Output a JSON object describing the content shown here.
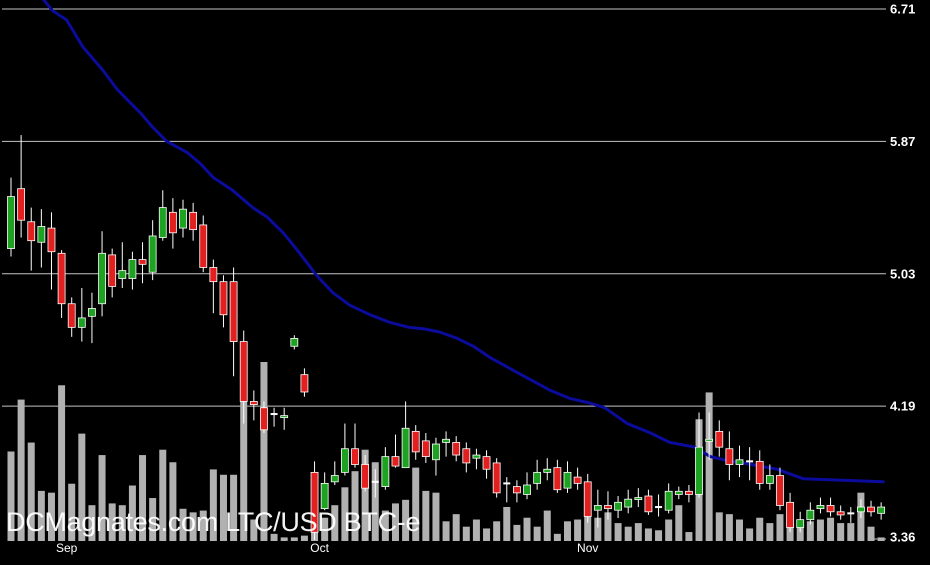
{
  "watermark": "DCMagnates.com LTC/USD BTC-e",
  "colors": {
    "background": "#000000",
    "up": "#1da321",
    "down": "#e32020",
    "wick": "#ffffff",
    "doji": "#ffffff",
    "volume": "#b1b1b1",
    "ma_line": "#0b0b9c",
    "grid": "#c4c4c4",
    "label": "#ffffff"
  },
  "chart_data": {
    "type": "candlestick",
    "title": "LTC/USD BTC-e daily price with volume and moving average",
    "legend": "off",
    "grid": "on",
    "y_axis": {
      "side": "right",
      "ylim": [
        3.3,
        6.77
      ],
      "ticks": [
        {
          "label": "6.71",
          "price": 6.71,
          "gridline": true
        },
        {
          "label": "5.87",
          "price": 5.87,
          "gridline": true
        },
        {
          "label": "5.03",
          "price": 5.03,
          "gridline": true
        },
        {
          "label": "4.19",
          "price": 4.19,
          "gridline": true
        },
        {
          "label": "3.36",
          "price": 3.36,
          "gridline": false
        }
      ]
    },
    "x_axis": {
      "labels": [
        {
          "label": "Sep",
          "index": 5.5
        },
        {
          "label": "Oct",
          "index": 30.5
        },
        {
          "label": "Nov",
          "index": 57
        }
      ]
    },
    "candles": [
      [
        "g",
        5.19,
        5.64,
        5.14,
        5.52
      ],
      [
        "r",
        5.57,
        5.91,
        5.26,
        5.37
      ],
      [
        "r",
        5.36,
        5.45,
        5.05,
        5.24
      ],
      [
        "g",
        5.23,
        5.44,
        5.07,
        5.33
      ],
      [
        "r",
        5.32,
        5.42,
        4.93,
        5.17
      ],
      [
        "r",
        5.16,
        5.18,
        4.75,
        4.84
      ],
      [
        "r",
        4.84,
        4.88,
        4.63,
        4.69
      ],
      [
        "g",
        4.69,
        4.94,
        4.6,
        4.75
      ],
      [
        "g",
        4.76,
        4.91,
        4.59,
        4.81
      ],
      [
        "g",
        4.84,
        5.3,
        4.76,
        5.16
      ],
      [
        "r",
        5.15,
        5.19,
        4.88,
        4.95
      ],
      [
        "g",
        5.0,
        5.23,
        4.94,
        5.05
      ],
      [
        "g",
        5.0,
        5.17,
        4.93,
        5.12
      ],
      [
        "r",
        5.12,
        5.23,
        4.97,
        5.09
      ],
      [
        "g",
        5.04,
        5.37,
        4.99,
        5.27
      ],
      [
        "g",
        5.26,
        5.56,
        5.24,
        5.45
      ],
      [
        "r",
        5.42,
        5.51,
        5.19,
        5.29
      ],
      [
        "g",
        5.32,
        5.5,
        5.26,
        5.44
      ],
      [
        "r",
        5.42,
        5.48,
        5.24,
        5.31
      ],
      [
        "r",
        5.34,
        5.4,
        5.04,
        5.07
      ],
      [
        "r",
        5.07,
        5.12,
        4.78,
        4.98
      ],
      [
        "r",
        4.98,
        5.02,
        4.69,
        4.77
      ],
      [
        "r",
        4.98,
        5.07,
        4.38,
        4.6
      ],
      [
        "r",
        4.6,
        4.67,
        4.08,
        4.22
      ],
      [
        "r",
        4.22,
        4.29,
        4.1,
        4.2
      ],
      [
        "r",
        4.18,
        4.22,
        4.02,
        4.04
      ],
      [
        "d",
        4.13,
        4.18,
        4.06,
        4.14
      ],
      [
        "g",
        4.12,
        4.18,
        4.04,
        4.13
      ],
      [
        "g",
        4.57,
        4.64,
        4.55,
        4.62
      ],
      [
        "r",
        4.39,
        4.43,
        4.25,
        4.28
      ],
      [
        "r",
        3.77,
        3.84,
        3.34,
        3.39
      ],
      [
        "g",
        3.54,
        3.77,
        3.53,
        3.7
      ],
      [
        "g",
        3.71,
        3.84,
        3.69,
        3.75
      ],
      [
        "g",
        3.77,
        4.08,
        3.75,
        3.92
      ],
      [
        "r",
        3.92,
        4.08,
        3.8,
        3.82
      ],
      [
        "r",
        3.82,
        3.88,
        3.65,
        3.67
      ],
      [
        "d",
        3.7,
        3.79,
        3.61,
        3.71
      ],
      [
        "g",
        3.68,
        3.93,
        3.66,
        3.87
      ],
      [
        "r",
        3.87,
        4.01,
        3.8,
        3.81
      ],
      [
        "g",
        3.8,
        4.22,
        3.8,
        4.05
      ],
      [
        "r",
        4.03,
        4.07,
        3.85,
        3.9
      ],
      [
        "r",
        3.97,
        4.02,
        3.83,
        3.87
      ],
      [
        "g",
        3.85,
        3.99,
        3.75,
        3.95
      ],
      [
        "g",
        3.96,
        4.03,
        3.87,
        3.98
      ],
      [
        "r",
        3.96,
        4.0,
        3.84,
        3.88
      ],
      [
        "r",
        3.92,
        3.96,
        3.77,
        3.83
      ],
      [
        "g",
        3.86,
        3.92,
        3.79,
        3.88
      ],
      [
        "r",
        3.87,
        3.91,
        3.73,
        3.79
      ],
      [
        "r",
        3.83,
        3.86,
        3.61,
        3.64
      ],
      [
        "d",
        3.69,
        3.74,
        3.58,
        3.7
      ],
      [
        "r",
        3.68,
        3.72,
        3.58,
        3.64
      ],
      [
        "g",
        3.63,
        3.77,
        3.6,
        3.69
      ],
      [
        "g",
        3.7,
        3.85,
        3.66,
        3.77
      ],
      [
        "g",
        3.77,
        3.86,
        3.72,
        3.79
      ],
      [
        "r",
        3.8,
        3.85,
        3.64,
        3.66
      ],
      [
        "g",
        3.67,
        3.84,
        3.64,
        3.77
      ],
      [
        "r",
        3.74,
        3.8,
        3.66,
        3.7
      ],
      [
        "r",
        3.71,
        3.76,
        3.45,
        3.49
      ],
      [
        "g",
        3.53,
        3.66,
        3.42,
        3.56
      ],
      [
        "r",
        3.56,
        3.65,
        3.47,
        3.54
      ],
      [
        "g",
        3.53,
        3.62,
        3.48,
        3.58
      ],
      [
        "g",
        3.55,
        3.66,
        3.51,
        3.6
      ],
      [
        "g",
        3.6,
        3.67,
        3.55,
        3.61
      ],
      [
        "r",
        3.62,
        3.66,
        3.5,
        3.52
      ],
      [
        "d",
        3.55,
        3.63,
        3.49,
        3.55
      ],
      [
        "g",
        3.53,
        3.7,
        3.51,
        3.65
      ],
      [
        "g",
        3.63,
        3.68,
        3.6,
        3.65
      ],
      [
        "r",
        3.65,
        3.69,
        3.58,
        3.63
      ],
      [
        "g",
        3.63,
        4.15,
        3.61,
        3.93
      ],
      [
        "g",
        3.97,
        4.15,
        3.85,
        3.98
      ],
      [
        "r",
        4.03,
        4.1,
        3.87,
        3.93
      ],
      [
        "r",
        3.92,
        4.03,
        3.72,
        3.82
      ],
      [
        "g",
        3.82,
        3.94,
        3.74,
        3.85
      ],
      [
        "d",
        3.83,
        3.93,
        3.72,
        3.84
      ],
      [
        "r",
        3.84,
        3.91,
        3.66,
        3.7
      ],
      [
        "g",
        3.7,
        3.82,
        3.66,
        3.75
      ],
      [
        "r",
        3.75,
        3.8,
        3.53,
        3.56
      ],
      [
        "r",
        3.58,
        3.64,
        3.39,
        3.42
      ],
      [
        "g",
        3.42,
        3.52,
        3.39,
        3.47
      ],
      [
        "g",
        3.47,
        3.58,
        3.44,
        3.53
      ],
      [
        "g",
        3.54,
        3.61,
        3.51,
        3.56
      ],
      [
        "r",
        3.56,
        3.61,
        3.49,
        3.52
      ],
      [
        "r",
        3.52,
        3.56,
        3.47,
        3.5
      ],
      [
        "d",
        3.51,
        3.55,
        3.45,
        3.51
      ],
      [
        "g",
        3.52,
        3.6,
        3.48,
        3.55
      ],
      [
        "r",
        3.55,
        3.59,
        3.49,
        3.52
      ],
      [
        "g",
        3.51,
        3.58,
        3.47,
        3.55
      ]
    ],
    "volume_relative": [
      50,
      79,
      55,
      28,
      27,
      87,
      32,
      60,
      20,
      48,
      21,
      20,
      31,
      48,
      24,
      51,
      44,
      18,
      16,
      17,
      40,
      37,
      37,
      86,
      12,
      100,
      4,
      2,
      2,
      3,
      8,
      13,
      20,
      30,
      39,
      51,
      44,
      17,
      21,
      23,
      41,
      28,
      27,
      11,
      15,
      8,
      12,
      7,
      11,
      19,
      9,
      13,
      8,
      17,
      4,
      11,
      12,
      19,
      13,
      16,
      10,
      8,
      10,
      7,
      6,
      12,
      20,
      5,
      68,
      83,
      16,
      15,
      12,
      7,
      13,
      10,
      15,
      14,
      9,
      11,
      12,
      13,
      10,
      10,
      27,
      8,
      2
    ],
    "moving_average": {
      "name": "moving-average-line",
      "points": [
        [
          3.2,
          6.77
        ],
        [
          4.1,
          6.7
        ],
        [
          5.5,
          6.64
        ],
        [
          7.1,
          6.47
        ],
        [
          9.1,
          6.32
        ],
        [
          10.5,
          6.2
        ],
        [
          12.8,
          6.05
        ],
        [
          14.0,
          5.96
        ],
        [
          15.4,
          5.87
        ],
        [
          17.4,
          5.8
        ],
        [
          18.7,
          5.73
        ],
        [
          20.0,
          5.64
        ],
        [
          21.9,
          5.56
        ],
        [
          23.9,
          5.45
        ],
        [
          25.3,
          5.39
        ],
        [
          26.9,
          5.29
        ],
        [
          28.3,
          5.18
        ],
        [
          30.2,
          5.02
        ],
        [
          31.8,
          4.91
        ],
        [
          33.5,
          4.83
        ],
        [
          35.5,
          4.77
        ],
        [
          37.5,
          4.72
        ],
        [
          39.4,
          4.69
        ],
        [
          40.9,
          4.68
        ],
        [
          42.4,
          4.66
        ],
        [
          44.1,
          4.62
        ],
        [
          45.7,
          4.57
        ],
        [
          47.3,
          4.5
        ],
        [
          49.3,
          4.43
        ],
        [
          51.3,
          4.36
        ],
        [
          53.3,
          4.29
        ],
        [
          55.2,
          4.24
        ],
        [
          57.2,
          4.21
        ],
        [
          58.7,
          4.18
        ],
        [
          60.9,
          4.08
        ],
        [
          63.2,
          4.02
        ],
        [
          65.1,
          3.96
        ],
        [
          67.6,
          3.93
        ],
        [
          69.1,
          3.87
        ],
        [
          71.1,
          3.84
        ],
        [
          72.3,
          3.83
        ],
        [
          75.7,
          3.79
        ],
        [
          78.3,
          3.73
        ],
        [
          82.2,
          3.72
        ],
        [
          86.2,
          3.71
        ]
      ]
    }
  }
}
